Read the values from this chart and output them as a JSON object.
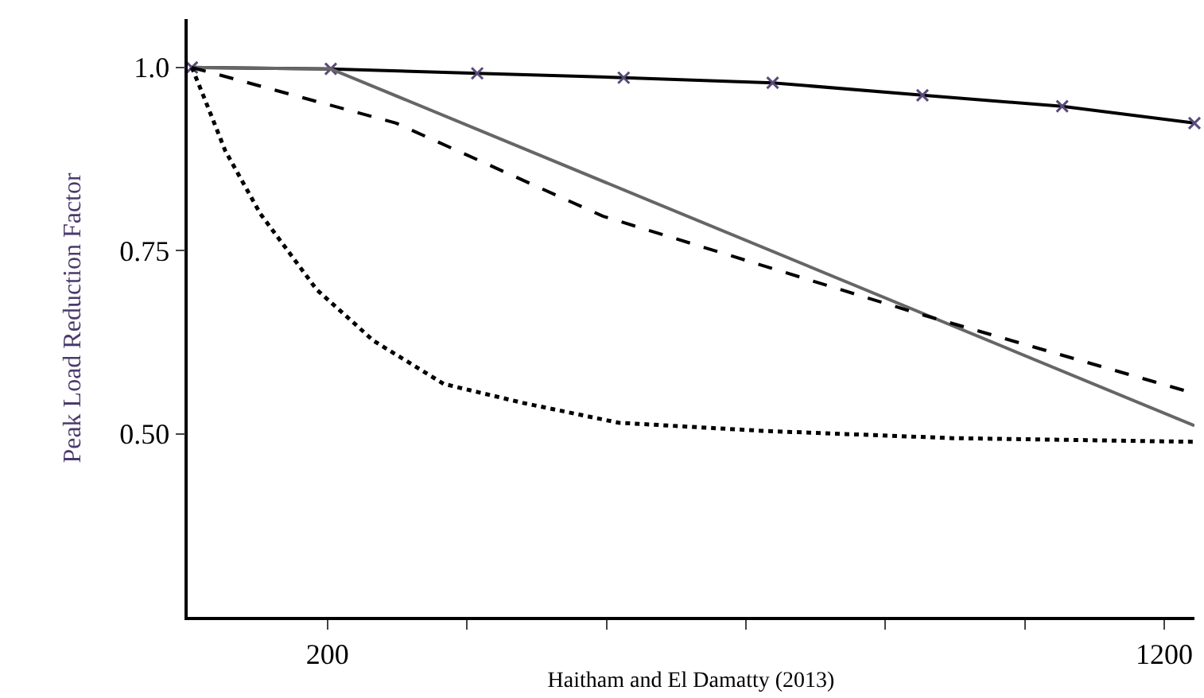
{
  "chart_data": {
    "type": "line",
    "ylabel": "Peak Load Reduction Factor",
    "xlabel": "Haitham and El Damatty (2013)",
    "xlim": [
      33,
      1236
    ],
    "ylim": [
      0.25,
      1.066
    ],
    "xticks": [
      200,
      {
        "value": 366.7,
        "label": null
      },
      {
        "value": 533.3,
        "label": null
      },
      {
        "value": 700,
        "label": null
      },
      {
        "value": 866.7,
        "label": null
      },
      {
        "value": 1033.3,
        "label": null
      },
      1200
    ],
    "yticks": [
      {
        "value": 1.0,
        "label": "1.0"
      },
      0.75,
      {
        "value": 0.5,
        "label": "0.50"
      }
    ],
    "series": [
      {
        "color": "#000000",
        "line_style": "solid",
        "marker": "cross",
        "x": [
          38,
          204,
          379,
          554,
          732,
          911,
          1078,
          1236
        ],
        "values": [
          1.0,
          0.998,
          0.992,
          0.986,
          0.979,
          0.962,
          0.947,
          0.924
        ]
      },
      {
        "color": "#666666",
        "line_style": "solid",
        "marker": "none",
        "x": [
          38,
          204,
          1236
        ],
        "values": [
          1.0,
          0.998,
          0.511
        ]
      },
      {
        "color": "#000000",
        "line_style": "dashed",
        "marker": "none",
        "x": [
          38,
          282,
          529,
          909,
          1236
        ],
        "values": [
          1.0,
          0.924,
          0.797,
          0.663,
          0.555
        ]
      },
      {
        "color": "#000000",
        "line_style": "dotted",
        "marker": "none",
        "x": [
          38,
          54,
          78,
          120,
          187,
          255,
          339,
          434,
          548,
          719,
          947,
          1236
        ],
        "values": [
          1.0,
          0.955,
          0.886,
          0.8,
          0.697,
          0.627,
          0.568,
          0.542,
          0.515,
          0.504,
          0.494,
          0.489
        ]
      }
    ]
  }
}
